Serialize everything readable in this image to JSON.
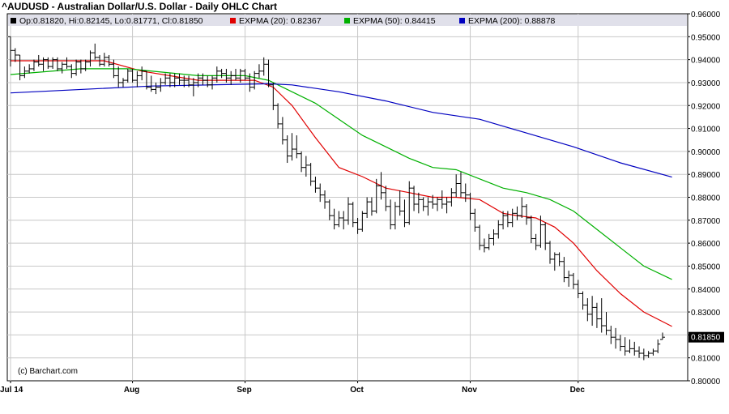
{
  "title": "^AUDUSD - Australian Dollar/U.S. Dollar - Daily OHLC Chart",
  "copyright": "(c) Barchart.com",
  "legend": {
    "ohlc": {
      "label": "Op:0.81820, Hi:0.82145, Lo:0.81771, Cl:0.81850",
      "color": "#000000"
    },
    "ema20": {
      "label": "EXPMA (20): 0.82367",
      "color": "#e00000"
    },
    "ema50": {
      "label": "EXPMA (50): 0.84415",
      "color": "#00b000"
    },
    "ema200": {
      "label": "EXPMA (200): 0.88878",
      "color": "#0000c0"
    }
  },
  "last_price_label": "0.81850",
  "colors": {
    "grid": "#c8c8c8",
    "legend_bg": "#e0e0ea",
    "last_label_bg": "#000000"
  },
  "chart_data": {
    "type": "ohlc",
    "title": "^AUDUSD - Australian Dollar/U.S. Dollar - Daily OHLC Chart",
    "ylim": [
      0.8,
      0.96
    ],
    "y_ticks": [
      "0.80000",
      "0.81000",
      "0.82000",
      "0.83000",
      "0.84000",
      "0.85000",
      "0.86000",
      "0.87000",
      "0.88000",
      "0.89000",
      "0.90000",
      "0.91000",
      "0.92000",
      "0.93000",
      "0.94000",
      "0.95000",
      "0.96000"
    ],
    "x_ticks": [
      "Jul 14",
      "Aug",
      "Sep",
      "Oct",
      "Nov",
      "Dec"
    ],
    "x_tick_index": [
      0,
      26,
      50,
      74,
      98,
      121
    ],
    "grid": true,
    "bars": [
      [
        0.95,
        0.95,
        0.937,
        0.944
      ],
      [
        0.944,
        0.945,
        0.939,
        0.942
      ],
      [
        0.942,
        0.942,
        0.931,
        0.933
      ],
      [
        0.933,
        0.937,
        0.932,
        0.935
      ],
      [
        0.935,
        0.938,
        0.934,
        0.936
      ],
      [
        0.936,
        0.94,
        0.935,
        0.939
      ],
      [
        0.939,
        0.942,
        0.937,
        0.938
      ],
      [
        0.938,
        0.941,
        0.935,
        0.94
      ],
      [
        0.94,
        0.941,
        0.936,
        0.937
      ],
      [
        0.937,
        0.941,
        0.936,
        0.94
      ],
      [
        0.94,
        0.941,
        0.935,
        0.936
      ],
      [
        0.936,
        0.939,
        0.934,
        0.938
      ],
      [
        0.938,
        0.941,
        0.936,
        0.937
      ],
      [
        0.937,
        0.938,
        0.932,
        0.934
      ],
      [
        0.934,
        0.94,
        0.933,
        0.939
      ],
      [
        0.939,
        0.94,
        0.934,
        0.936
      ],
      [
        0.936,
        0.94,
        0.935,
        0.939
      ],
      [
        0.939,
        0.944,
        0.937,
        0.943
      ],
      [
        0.943,
        0.947,
        0.94,
        0.941
      ],
      [
        0.941,
        0.942,
        0.937,
        0.938
      ],
      [
        0.938,
        0.943,
        0.937,
        0.941
      ],
      [
        0.941,
        0.942,
        0.937,
        0.938
      ],
      [
        0.938,
        0.94,
        0.932,
        0.933
      ],
      [
        0.933,
        0.937,
        0.928,
        0.93
      ],
      [
        0.93,
        0.932,
        0.928,
        0.931
      ],
      [
        0.931,
        0.936,
        0.93,
        0.935
      ],
      [
        0.935,
        0.936,
        0.93,
        0.931
      ],
      [
        0.931,
        0.935,
        0.928,
        0.933
      ],
      [
        0.933,
        0.937,
        0.931,
        0.935
      ],
      [
        0.935,
        0.935,
        0.927,
        0.928
      ],
      [
        0.928,
        0.933,
        0.926,
        0.927
      ],
      [
        0.927,
        0.93,
        0.925,
        0.928
      ],
      [
        0.928,
        0.932,
        0.926,
        0.93
      ],
      [
        0.93,
        0.934,
        0.929,
        0.932
      ],
      [
        0.932,
        0.934,
        0.928,
        0.93
      ],
      [
        0.93,
        0.934,
        0.928,
        0.932
      ],
      [
        0.932,
        0.934,
        0.929,
        0.931
      ],
      [
        0.931,
        0.933,
        0.928,
        0.931
      ],
      [
        0.931,
        0.933,
        0.928,
        0.929
      ],
      [
        0.929,
        0.932,
        0.924,
        0.93
      ],
      [
        0.93,
        0.934,
        0.928,
        0.932
      ],
      [
        0.932,
        0.934,
        0.929,
        0.931
      ],
      [
        0.931,
        0.933,
        0.928,
        0.929
      ],
      [
        0.929,
        0.933,
        0.927,
        0.932
      ],
      [
        0.932,
        0.937,
        0.93,
        0.935
      ],
      [
        0.935,
        0.936,
        0.932,
        0.934
      ],
      [
        0.934,
        0.936,
        0.93,
        0.932
      ],
      [
        0.932,
        0.935,
        0.929,
        0.933
      ],
      [
        0.933,
        0.936,
        0.931,
        0.932
      ],
      [
        0.932,
        0.936,
        0.93,
        0.935
      ],
      [
        0.935,
        0.936,
        0.931,
        0.932
      ],
      [
        0.932,
        0.934,
        0.926,
        0.928
      ],
      [
        0.928,
        0.935,
        0.927,
        0.934
      ],
      [
        0.934,
        0.938,
        0.932,
        0.935
      ],
      [
        0.935,
        0.941,
        0.933,
        0.938
      ],
      [
        0.938,
        0.94,
        0.928,
        0.929
      ],
      [
        0.929,
        0.93,
        0.918,
        0.92
      ],
      [
        0.92,
        0.921,
        0.91,
        0.912
      ],
      [
        0.912,
        0.915,
        0.903,
        0.905
      ],
      [
        0.905,
        0.907,
        0.895,
        0.898
      ],
      [
        0.898,
        0.908,
        0.896,
        0.901
      ],
      [
        0.901,
        0.907,
        0.897,
        0.899
      ],
      [
        0.899,
        0.9,
        0.891,
        0.893
      ],
      [
        0.893,
        0.898,
        0.889,
        0.894
      ],
      [
        0.894,
        0.895,
        0.885,
        0.887
      ],
      [
        0.887,
        0.889,
        0.882,
        0.884
      ],
      [
        0.884,
        0.886,
        0.878,
        0.881
      ],
      [
        0.881,
        0.883,
        0.875,
        0.878
      ],
      [
        0.878,
        0.879,
        0.87,
        0.872
      ],
      [
        0.872,
        0.875,
        0.866,
        0.868
      ],
      [
        0.868,
        0.874,
        0.867,
        0.871
      ],
      [
        0.871,
        0.874,
        0.866,
        0.87
      ],
      [
        0.87,
        0.88,
        0.868,
        0.877
      ],
      [
        0.877,
        0.878,
        0.867,
        0.869
      ],
      [
        0.869,
        0.871,
        0.864,
        0.866
      ],
      [
        0.866,
        0.874,
        0.865,
        0.873
      ],
      [
        0.873,
        0.88,
        0.871,
        0.878
      ],
      [
        0.878,
        0.88,
        0.872,
        0.874
      ],
      [
        0.874,
        0.888,
        0.873,
        0.885
      ],
      [
        0.885,
        0.891,
        0.879,
        0.882
      ],
      [
        0.882,
        0.885,
        0.874,
        0.876
      ],
      [
        0.876,
        0.879,
        0.866,
        0.868
      ],
      [
        0.868,
        0.878,
        0.866,
        0.876
      ],
      [
        0.876,
        0.883,
        0.872,
        0.874
      ],
      [
        0.874,
        0.879,
        0.867,
        0.869
      ],
      [
        0.869,
        0.887,
        0.868,
        0.884
      ],
      [
        0.884,
        0.885,
        0.874,
        0.877
      ],
      [
        0.877,
        0.882,
        0.873,
        0.879
      ],
      [
        0.879,
        0.88,
        0.874,
        0.876
      ],
      [
        0.876,
        0.88,
        0.872,
        0.878
      ],
      [
        0.878,
        0.881,
        0.875,
        0.877
      ],
      [
        0.877,
        0.88,
        0.874,
        0.879
      ],
      [
        0.879,
        0.883,
        0.875,
        0.877
      ],
      [
        0.877,
        0.88,
        0.873,
        0.878
      ],
      [
        0.878,
        0.884,
        0.876,
        0.882
      ],
      [
        0.882,
        0.89,
        0.88,
        0.886
      ],
      [
        0.886,
        0.891,
        0.88,
        0.882
      ],
      [
        0.882,
        0.886,
        0.878,
        0.881
      ],
      [
        0.881,
        0.882,
        0.87,
        0.873
      ],
      [
        0.873,
        0.875,
        0.865,
        0.867
      ],
      [
        0.867,
        0.868,
        0.857,
        0.859
      ],
      [
        0.859,
        0.862,
        0.856,
        0.858
      ],
      [
        0.858,
        0.864,
        0.857,
        0.862
      ],
      [
        0.862,
        0.866,
        0.859,
        0.864
      ],
      [
        0.864,
        0.87,
        0.862,
        0.868
      ],
      [
        0.868,
        0.874,
        0.866,
        0.872
      ],
      [
        0.872,
        0.874,
        0.867,
        0.869
      ],
      [
        0.869,
        0.875,
        0.867,
        0.873
      ],
      [
        0.873,
        0.876,
        0.87,
        0.872
      ],
      [
        0.872,
        0.88,
        0.871,
        0.876
      ],
      [
        0.876,
        0.877,
        0.868,
        0.871
      ],
      [
        0.871,
        0.872,
        0.86,
        0.862
      ],
      [
        0.862,
        0.864,
        0.857,
        0.859
      ],
      [
        0.859,
        0.872,
        0.858,
        0.868
      ],
      [
        0.868,
        0.869,
        0.857,
        0.86
      ],
      [
        0.86,
        0.861,
        0.851,
        0.853
      ],
      [
        0.853,
        0.856,
        0.848,
        0.855
      ],
      [
        0.855,
        0.856,
        0.85,
        0.852
      ],
      [
        0.852,
        0.854,
        0.843,
        0.845
      ],
      [
        0.845,
        0.848,
        0.841,
        0.846
      ],
      [
        0.846,
        0.847,
        0.84,
        0.842
      ],
      [
        0.842,
        0.844,
        0.836,
        0.838
      ],
      [
        0.838,
        0.839,
        0.831,
        0.833
      ],
      [
        0.833,
        0.836,
        0.826,
        0.829
      ],
      [
        0.829,
        0.837,
        0.824,
        0.832
      ],
      [
        0.832,
        0.834,
        0.823,
        0.827
      ],
      [
        0.827,
        0.836,
        0.821,
        0.824
      ],
      [
        0.824,
        0.83,
        0.82,
        0.822
      ],
      [
        0.822,
        0.824,
        0.816,
        0.819
      ],
      [
        0.819,
        0.823,
        0.814,
        0.818
      ],
      [
        0.818,
        0.82,
        0.813,
        0.815
      ],
      [
        0.815,
        0.819,
        0.811,
        0.813
      ],
      [
        0.813,
        0.818,
        0.812,
        0.814
      ],
      [
        0.814,
        0.817,
        0.811,
        0.813
      ],
      [
        0.813,
        0.815,
        0.81,
        0.812
      ],
      [
        0.812,
        0.814,
        0.809,
        0.811
      ],
      [
        0.811,
        0.813,
        0.81,
        0.812
      ],
      [
        0.812,
        0.814,
        0.811,
        0.813
      ],
      [
        0.813,
        0.818,
        0.812,
        0.816
      ],
      [
        0.818,
        0.821,
        0.818,
        0.819
      ]
    ],
    "series": [
      {
        "name": "EXPMA (20)",
        "color": "#e00000",
        "points": [
          [
            0,
            0.9395
          ],
          [
            20,
            0.9395
          ],
          [
            28,
            0.935
          ],
          [
            40,
            0.931
          ],
          [
            52,
            0.931
          ],
          [
            56,
            0.928
          ],
          [
            60,
            0.92
          ],
          [
            65,
            0.906
          ],
          [
            70,
            0.893
          ],
          [
            75,
            0.889
          ],
          [
            80,
            0.884
          ],
          [
            85,
            0.882
          ],
          [
            90,
            0.88
          ],
          [
            95,
            0.88
          ],
          [
            100,
            0.879
          ],
          [
            105,
            0.873
          ],
          [
            108,
            0.872
          ],
          [
            112,
            0.871
          ],
          [
            116,
            0.867
          ],
          [
            120,
            0.86
          ],
          [
            125,
            0.848
          ],
          [
            130,
            0.838
          ],
          [
            135,
            0.83
          ],
          [
            141,
            0.8237
          ]
        ]
      },
      {
        "name": "EXPMA (50)",
        "color": "#00b000",
        "points": [
          [
            0,
            0.9335
          ],
          [
            15,
            0.936
          ],
          [
            25,
            0.936
          ],
          [
            40,
            0.933
          ],
          [
            50,
            0.933
          ],
          [
            55,
            0.931
          ],
          [
            60,
            0.926
          ],
          [
            65,
            0.921
          ],
          [
            70,
            0.914
          ],
          [
            75,
            0.907
          ],
          [
            80,
            0.902
          ],
          [
            85,
            0.897
          ],
          [
            90,
            0.893
          ],
          [
            95,
            0.892
          ],
          [
            100,
            0.888
          ],
          [
            105,
            0.884
          ],
          [
            110,
            0.882
          ],
          [
            115,
            0.879
          ],
          [
            120,
            0.874
          ],
          [
            125,
            0.866
          ],
          [
            130,
            0.858
          ],
          [
            135,
            0.85
          ],
          [
            141,
            0.8442
          ]
        ]
      },
      {
        "name": "EXPMA (200)",
        "color": "#0000c0",
        "points": [
          [
            0,
            0.9255
          ],
          [
            30,
            0.9285
          ],
          [
            55,
            0.9295
          ],
          [
            60,
            0.929
          ],
          [
            70,
            0.926
          ],
          [
            80,
            0.922
          ],
          [
            90,
            0.917
          ],
          [
            100,
            0.914
          ],
          [
            110,
            0.908
          ],
          [
            120,
            0.902
          ],
          [
            130,
            0.895
          ],
          [
            141,
            0.8888
          ]
        ]
      }
    ]
  }
}
